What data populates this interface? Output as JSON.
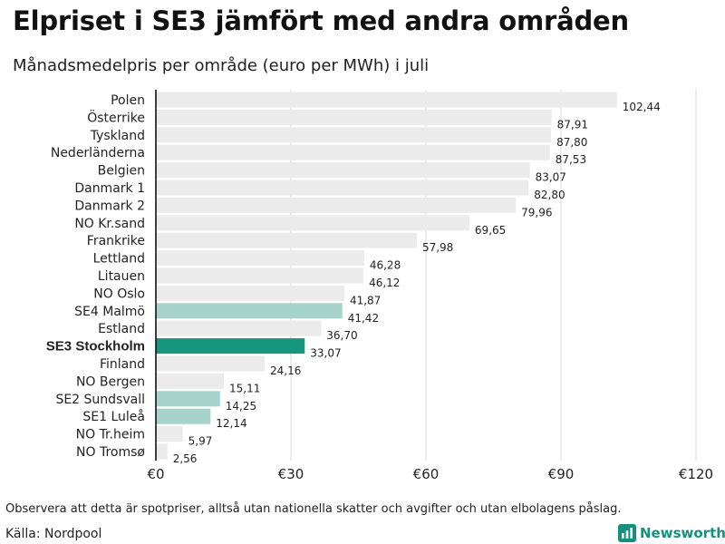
{
  "title": "Elpriset i SE3 jämfört med andra områden",
  "subtitle": "Månadsmedelpris per område (euro per MWh) i juli",
  "footnote": "Observera att detta är spotpriser, alltså utan nationella skatter och avgifter och utan elbolagens påslag.",
  "source": "Källa: Nordpool",
  "brand": "Newsworthy",
  "colors": {
    "default": "#ebebeb",
    "highlight": "#17967f",
    "related": "#a6d3cb",
    "axis": "#111111",
    "grid": "#d9d9d9",
    "brand": "#16907e"
  },
  "chart_data": {
    "type": "bar",
    "orientation": "horizontal",
    "title": "Elpriset i SE3 jämfört med andra områden",
    "subtitle": "Månadsmedelpris per område (euro per MWh) i juli",
    "xlabel": "",
    "ylabel": "",
    "xlim": [
      0,
      120
    ],
    "xticks": [
      0,
      30,
      60,
      90,
      120
    ],
    "xtick_labels": [
      "€0",
      "€30",
      "€60",
      "€90",
      "€120"
    ],
    "grid": true,
    "categories": [
      "Polen",
      "Österrike",
      "Tyskland",
      "Nederländerna",
      "Belgien",
      "Danmark  1",
      "Danmark  2",
      "NO Kr.sand",
      "Frankrike",
      "Lettland",
      "Litauen",
      "NO Oslo",
      "SE4  Malmö",
      "Estland",
      "SE3 Stockholm",
      "Finland",
      "NO Bergen",
      "SE2  Sundsvall",
      "SE1  Luleå",
      "NO Tr.heim",
      "NO Tromsø"
    ],
    "values": [
      102.44,
      87.91,
      87.8,
      87.53,
      83.07,
      82.8,
      79.96,
      69.65,
      57.98,
      46.28,
      46.12,
      41.87,
      41.42,
      36.7,
      33.07,
      24.16,
      15.11,
      14.25,
      12.14,
      5.97,
      2.56
    ],
    "value_labels": [
      "102,44",
      "87,91",
      "87,80",
      "87,53",
      "83,07",
      "82,80",
      "79,96",
      "69,65",
      "57,98",
      "46,28",
      "46,12",
      "41,87",
      "41,42",
      "36,70",
      "33,07",
      "24,16",
      "15,11",
      "14,25",
      "12,14",
      "5,97",
      "2,56"
    ],
    "roles": [
      "default",
      "default",
      "default",
      "default",
      "default",
      "default",
      "default",
      "default",
      "default",
      "default",
      "default",
      "default",
      "related",
      "default",
      "highlight",
      "default",
      "default",
      "related",
      "related",
      "default",
      "default"
    ]
  }
}
